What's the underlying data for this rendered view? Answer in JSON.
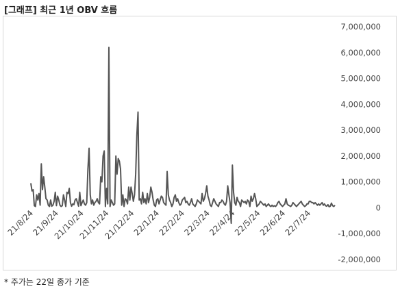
{
  "title": "[그래프] 최근 1년 OBV 흐름",
  "footnote": "* 주가는 22일 종가 기준",
  "colors": {
    "line": "#555555",
    "frame": "#d6d6d6",
    "text": "#444444"
  },
  "chart_data": {
    "type": "line",
    "title": "",
    "xlabel": "",
    "ylabel": "",
    "y_axis_position": "right",
    "ylim": [
      -2000000,
      7000000
    ],
    "yticks": [
      7000000,
      6000000,
      5000000,
      4000000,
      3000000,
      2000000,
      1000000,
      0,
      -1000000,
      -2000000
    ],
    "ytick_labels": [
      "7,000,000",
      "6,000,000",
      "5,000,000",
      "4,000,000",
      "3,000,000",
      "2,000,000",
      "1,000,000",
      "0",
      "-1,000,000",
      "-2,000,000"
    ],
    "xtick_labels": [
      "21/8/24",
      "21/9/24",
      "21/10/24",
      "21/11/24",
      "21/12/24",
      "22/1/24",
      "22/2/24",
      "22/3/24",
      "22/4/24",
      "22/5/24",
      "22/6/24",
      "22/7/24"
    ],
    "grid": false,
    "legend": "none",
    "series": [
      {
        "values": [
          950000,
          650000,
          700000,
          80000,
          50000,
          500000,
          300000,
          550000,
          100000,
          1700000,
          700000,
          1200000,
          800000,
          350000,
          300000,
          100000,
          50000,
          300000,
          60000,
          100000,
          250000,
          600000,
          80000,
          450000,
          300000,
          100000,
          50000,
          80000,
          500000,
          300000,
          50000,
          600000,
          550000,
          750000,
          200000,
          60000,
          150000,
          120000,
          300000,
          350000,
          200000,
          60000,
          600000,
          80000,
          200000,
          300000,
          150000,
          100000,
          200000,
          1500000,
          2300000,
          500000,
          150000,
          300000,
          100000,
          200000,
          250000,
          350000,
          200000,
          150000,
          1200000,
          1000000,
          2000000,
          2200000,
          50000,
          750000,
          150000,
          6200000,
          50000,
          300000,
          200000,
          100000,
          150000,
          2000000,
          1300000,
          1900000,
          1800000,
          1500000,
          100000,
          500000,
          50000,
          350000,
          300000,
          150000,
          800000,
          300000,
          800000,
          550000,
          250000,
          500000,
          1300000,
          2800000,
          3700000,
          300000,
          350000,
          150000,
          600000,
          200000,
          350000,
          150000,
          550000,
          200000,
          400000,
          800000,
          600000,
          300000,
          100000,
          50000,
          300000,
          350000,
          150000,
          300000,
          450000,
          400000,
          200000,
          150000,
          100000,
          1400000,
          500000,
          300000,
          200000,
          50000,
          150000,
          400000,
          500000,
          250000,
          350000,
          200000,
          100000,
          150000,
          300000,
          350000,
          400000,
          200000,
          250000,
          150000,
          100000,
          200000,
          350000,
          150000,
          100000,
          50000,
          150000,
          300000,
          250000,
          200000,
          150000,
          550000,
          250000,
          350000,
          550000,
          850000,
          450000,
          300000,
          100000,
          50000,
          200000,
          350000,
          250000,
          150000,
          100000,
          50000,
          200000,
          200000,
          300000,
          250000,
          150000,
          100000,
          250000,
          850000,
          500000,
          200000,
          -600000,
          1650000,
          600000,
          200000,
          100000,
          400000,
          250000,
          200000,
          50000,
          300000,
          250000,
          200000,
          250000,
          150000,
          300000,
          250000,
          50000,
          450000,
          250000,
          350000,
          550000,
          350000,
          50000,
          100000,
          150000,
          250000,
          200000,
          150000,
          100000,
          150000,
          50000,
          100000,
          150000,
          80000,
          50000,
          100000,
          50000,
          80000,
          50000,
          100000,
          200000,
          250000,
          150000,
          100000,
          50000,
          100000,
          150000,
          350000,
          150000,
          100000,
          80000,
          50000,
          100000,
          200000,
          150000,
          100000,
          50000,
          100000,
          150000,
          200000,
          250000,
          150000,
          100000,
          50000,
          80000,
          150000,
          150000,
          250000,
          250000,
          200000,
          200000,
          150000,
          200000,
          150000,
          100000,
          150000,
          100000,
          150000,
          200000,
          100000,
          150000,
          80000,
          60000,
          120000,
          40000,
          60000,
          180000,
          80000,
          50000,
          100000
        ]
      }
    ]
  }
}
